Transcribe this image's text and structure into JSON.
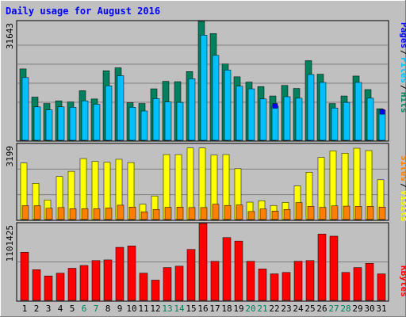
{
  "chart_data": [
    {
      "type": "bar",
      "panel": "hits-files-pages",
      "title": "Daily usage for August 2016",
      "categories": [
        "1",
        "2",
        "3",
        "4",
        "5",
        "6",
        "7",
        "8",
        "9",
        "10",
        "11",
        "12",
        "13",
        "14",
        "15",
        "16",
        "17",
        "18",
        "19",
        "20",
        "21",
        "22",
        "23",
        "24",
        "25",
        "26",
        "27",
        "28",
        "29",
        "30",
        "31"
      ],
      "weekend_days": [
        "6",
        "7",
        "13",
        "14",
        "20",
        "21",
        "27",
        "28"
      ],
      "ymax_label": "31643",
      "ylim": [
        0,
        31643
      ],
      "legend": [
        "Pages",
        "Files",
        "Hits"
      ],
      "series": [
        {
          "name": "Hits",
          "color": "#00805c",
          "values": [
            19000,
            11500,
            9800,
            10500,
            10200,
            13200,
            11000,
            18500,
            19300,
            10000,
            9800,
            13700,
            15700,
            15600,
            18300,
            31643,
            28400,
            20300,
            16900,
            15500,
            14300,
            11800,
            14600,
            13800,
            21200,
            17600,
            9800,
            11800,
            17100,
            13500,
            8400
          ]
        },
        {
          "name": "Files",
          "color": "#00c0ff",
          "values": [
            16700,
            8900,
            8100,
            8900,
            8800,
            10500,
            9600,
            14500,
            17200,
            8800,
            7800,
            11100,
            10200,
            10100,
            16400,
            28000,
            22600,
            18700,
            14400,
            13700,
            11000,
            9100,
            11600,
            11200,
            17500,
            15400,
            8600,
            10100,
            15400,
            11200,
            8000
          ]
        },
        {
          "name": "Pages",
          "color": "#0000ff",
          "values": [
            0,
            0,
            0,
            0,
            0,
            0,
            0,
            0,
            0,
            0,
            0,
            0,
            0,
            0,
            0,
            0,
            0,
            0,
            0,
            0,
            0,
            9800,
            0,
            0,
            0,
            0,
            0,
            0,
            0,
            0,
            8200
          ]
        }
      ]
    },
    {
      "type": "bar",
      "panel": "visits-sites",
      "categories": [
        "1",
        "2",
        "3",
        "4",
        "5",
        "6",
        "7",
        "8",
        "9",
        "10",
        "11",
        "12",
        "13",
        "14",
        "15",
        "16",
        "17",
        "18",
        "19",
        "20",
        "21",
        "22",
        "23",
        "24",
        "25",
        "26",
        "27",
        "28",
        "29",
        "30",
        "31"
      ],
      "ymax_label": "3199",
      "ylim": [
        0,
        3199
      ],
      "legend": [
        "Sites",
        "Visits"
      ],
      "series": [
        {
          "name": "Visits",
          "color": "#ffff00",
          "values": [
            2400,
            1540,
            830,
            1830,
            2050,
            2590,
            2470,
            2430,
            2560,
            2420,
            650,
            1000,
            2760,
            2760,
            3040,
            3040,
            2740,
            2760,
            2160,
            740,
            800,
            600,
            730,
            1430,
            2010,
            2640,
            2920,
            2820,
            3030,
            2930,
            1690
          ]
        },
        {
          "name": "Sites",
          "color": "#ff8000",
          "values": [
            590,
            590,
            480,
            510,
            460,
            460,
            460,
            490,
            610,
            530,
            330,
            430,
            520,
            530,
            510,
            510,
            650,
            600,
            620,
            340,
            450,
            360,
            430,
            720,
            560,
            520,
            580,
            570,
            560,
            560,
            530
          ]
        }
      ]
    },
    {
      "type": "bar",
      "panel": "kbytes",
      "categories": [
        "1",
        "2",
        "3",
        "4",
        "5",
        "6",
        "7",
        "8",
        "9",
        "10",
        "11",
        "12",
        "13",
        "14",
        "15",
        "16",
        "17",
        "18",
        "19",
        "20",
        "21",
        "22",
        "23",
        "24",
        "25",
        "26",
        "27",
        "28",
        "29",
        "30",
        "31"
      ],
      "ymax_label": "1101425",
      "ylim": [
        0,
        1101425
      ],
      "legend": [
        "KBytes"
      ],
      "series": [
        {
          "name": "KBytes",
          "color": "#ff0000",
          "values": [
            690000,
            440000,
            350000,
            390000,
            460000,
            500000,
            570000,
            580000,
            760000,
            780000,
            390000,
            290000,
            470000,
            490000,
            730000,
            1101425,
            560000,
            900000,
            850000,
            560000,
            450000,
            380000,
            400000,
            560000,
            570000,
            950000,
            920000,
            400000,
            470000,
            530000,
            380000
          ]
        }
      ]
    }
  ]
}
